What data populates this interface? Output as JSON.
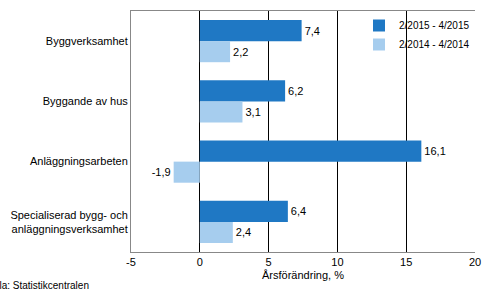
{
  "chart_data": {
    "type": "bar",
    "orientation": "horizontal",
    "categories": [
      "Byggverksamhet",
      "Byggande av hus",
      "Anläggningsarbeten",
      "Specialiserad bygg- och\nanläggningsverksamhet"
    ],
    "series": [
      {
        "name": "2/2015 - 4/2015",
        "color": "#1f78c4",
        "values": [
          7.4,
          6.2,
          16.1,
          6.4
        ],
        "value_labels": [
          "7,4",
          "6,2",
          "16,1",
          "6,4"
        ]
      },
      {
        "name": "2/2014 - 4/2014",
        "color": "#a6cdee",
        "values": [
          2.2,
          3.1,
          -1.9,
          2.4
        ],
        "value_labels": [
          "2,2",
          "3,1",
          "-1,9",
          "2,4"
        ]
      }
    ],
    "x_label": "Årsförändring, %",
    "xlim": [
      -5,
      20
    ],
    "xticks": [
      -5,
      0,
      5,
      10,
      15,
      20
    ],
    "grid": true,
    "legend": "top right",
    "data_labels": true,
    "source": "Källa: Statistikcentralen"
  }
}
